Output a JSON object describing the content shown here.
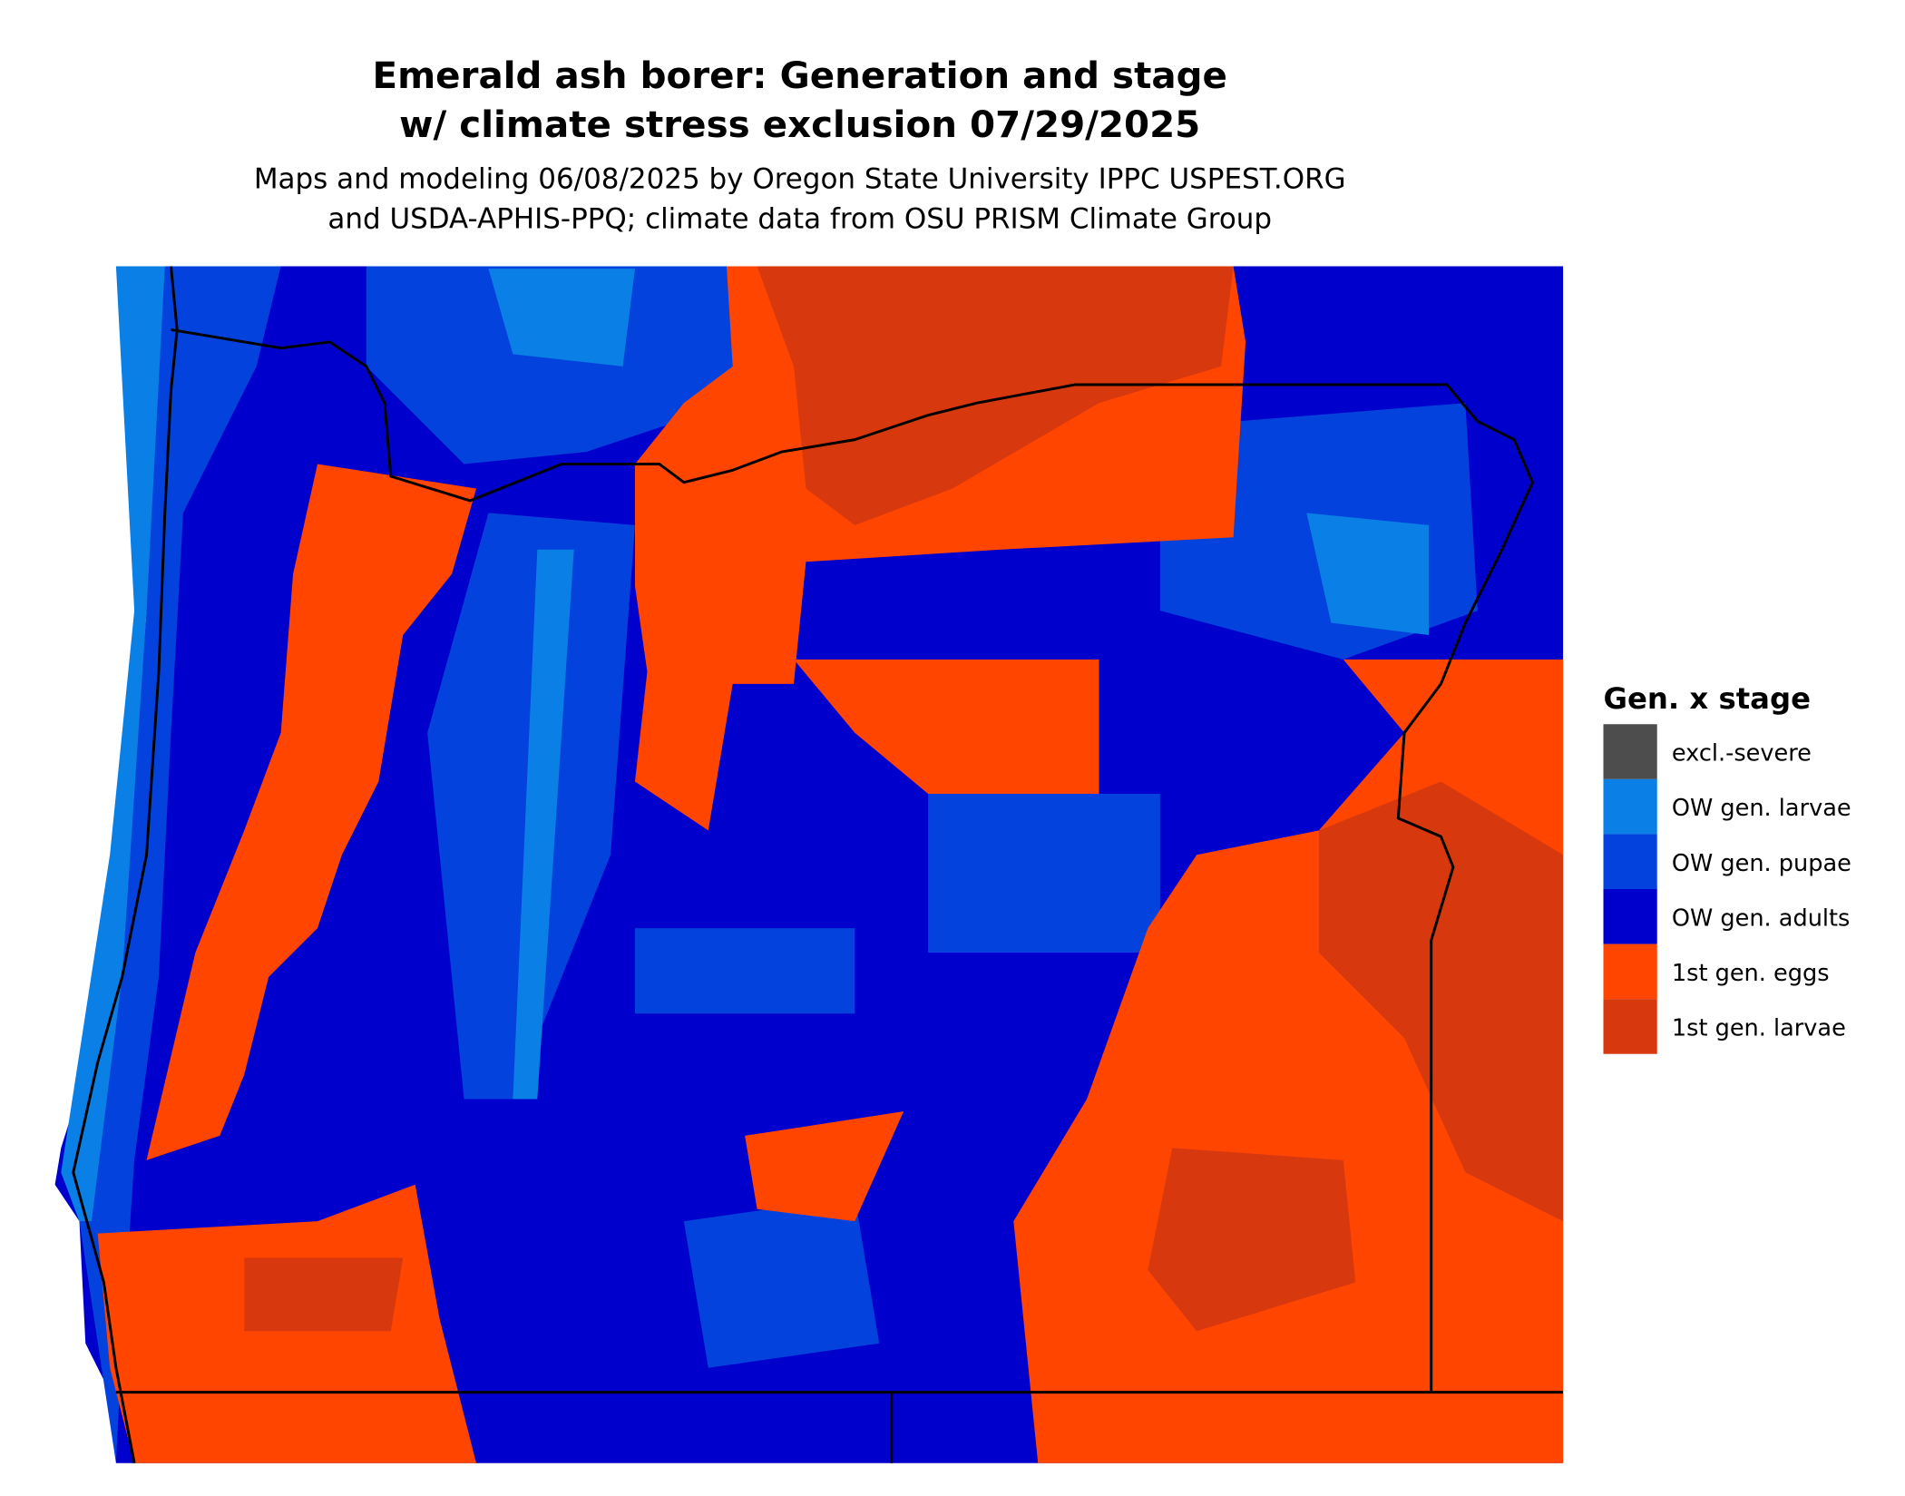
{
  "title": "Emerald ash borer: Generation and stage w/ climate stress exclusion 07/29/2025",
  "subtitle": "Maps and modeling 06/08/2025 by Oregon State University IPPC USPEST.ORG and USDA-APHIS-PPQ; climate data from OSU PRISM Climate Group",
  "legend": {
    "title": "Gen. x stage",
    "items": [
      {
        "label": "excl.-severe",
        "color": "#4d4d4d"
      },
      {
        "label": "OW gen. larvae",
        "color": "#0a7fe6"
      },
      {
        "label": "OW gen. pupae",
        "color": "#0342dc"
      },
      {
        "label": "OW gen. adults",
        "color": "#0000cc"
      },
      {
        "label": "1st gen. eggs",
        "color": "#ff4500"
      },
      {
        "label": "1st gen. larvae",
        "color": "#d7380e"
      }
    ]
  }
}
